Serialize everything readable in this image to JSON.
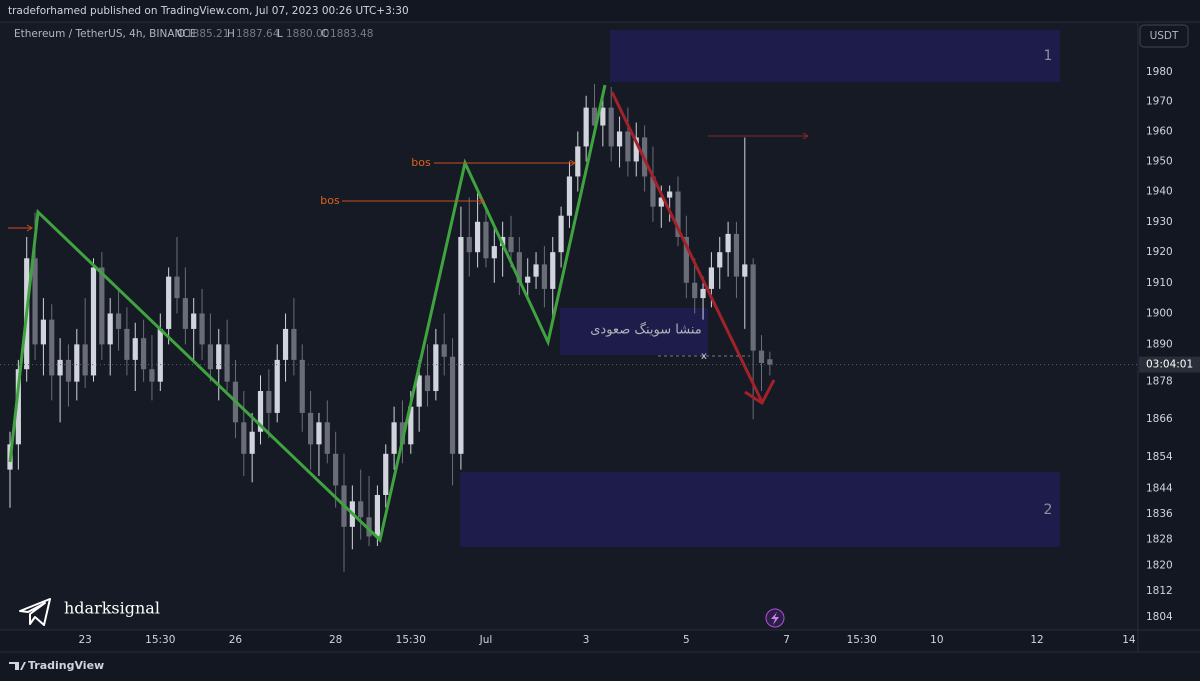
{
  "header": {
    "publisher": "tradeforhamed published on TradingView.com, Jul 07, 2023 00:26 UTC+3:30"
  },
  "chart_data": {
    "type": "candlestick",
    "symbol": "Ethereum / TetherUS, 4h, BINANCE",
    "ohlc_labels": [
      "O",
      "H",
      "L",
      "C"
    ],
    "legend_values": [
      "1885.21",
      "1887.64",
      "1880.00",
      "1883.48"
    ],
    "currency": "USDT",
    "countdown": "03:04:01",
    "log_scale": true,
    "grid": false,
    "ylim": [
      1800,
      1997
    ],
    "yticks": [
      1980,
      1970,
      1960,
      1950,
      1940,
      1930,
      1920,
      1910,
      1900,
      1890,
      1878,
      1866,
      1854,
      1844,
      1836,
      1828,
      1820,
      1812,
      1804
    ],
    "colors": {
      "up": "#d1d4dc",
      "down": "#6a6d78"
    },
    "categories": [
      null,
      null,
      null,
      null,
      null,
      null,
      null,
      null,
      null,
      "23",
      null,
      null,
      null,
      null,
      null,
      null,
      null,
      null,
      "15:30",
      null,
      null,
      null,
      null,
      null,
      null,
      null,
      null,
      "26",
      null,
      null,
      null,
      null,
      null,
      null,
      null,
      null,
      null,
      null,
      null,
      "28",
      null,
      null,
      null,
      null,
      null,
      null,
      null,
      null,
      "15:30",
      null,
      null,
      null,
      null,
      null,
      null,
      null,
      null,
      "Jul",
      null,
      null,
      null,
      null,
      null,
      null,
      null,
      null,
      null,
      null,
      null,
      "3",
      null,
      null,
      null,
      null,
      null,
      null,
      null,
      null,
      null,
      null,
      null,
      "5",
      null,
      null,
      null,
      null,
      null,
      null,
      null,
      null,
      null,
      null,
      null,
      "7",
      null,
      null,
      null,
      null,
      null,
      null,
      null,
      null,
      "15:30",
      null,
      null,
      null,
      null,
      null,
      null,
      null,
      null,
      "10",
      null,
      null,
      null,
      null,
      null,
      null,
      null,
      null,
      null,
      null,
      null,
      "12",
      null,
      null,
      null,
      null,
      null,
      null,
      null,
      null,
      null,
      null,
      "14"
    ],
    "open": [
      1850,
      1858,
      1882,
      1918,
      1890,
      1898,
      1880,
      1885,
      1878,
      1890,
      1880,
      1915,
      1890,
      1900,
      1895,
      1885,
      1892,
      1882,
      1878,
      1895,
      1912,
      1905,
      1895,
      1900,
      1890,
      1882,
      1890,
      1878,
      1865,
      1855,
      1862,
      1875,
      1868,
      1885,
      1895,
      1885,
      1868,
      1858,
      1865,
      1855,
      1845,
      1832,
      1840,
      1835,
      1829,
      1842,
      1855,
      1865,
      1858,
      1870,
      1880,
      1875,
      1890,
      1886,
      1855,
      1925,
      1920,
      1930,
      1918,
      1922,
      1925,
      1920,
      1910,
      1912,
      1916,
      1908,
      1920,
      1932,
      1945,
      1955,
      1968,
      1962,
      1968,
      1955,
      1960,
      1950,
      1958,
      1945,
      1935,
      1938,
      1940,
      1925,
      1910,
      1905,
      1908,
      1915,
      1920,
      1926,
      1912,
      1916,
      1888,
      1885.21,
      null,
      null,
      null,
      null,
      null,
      null,
      null,
      null,
      null,
      null,
      null,
      null,
      null,
      null,
      null,
      null,
      null,
      null,
      null,
      null,
      null,
      null,
      null,
      null,
      null,
      null,
      null,
      null,
      null,
      null,
      null,
      null,
      null,
      null,
      null,
      null,
      null,
      null,
      null,
      null,
      null,
      null,
      null
    ],
    "high": [
      1862,
      1885,
      1925,
      1933,
      1905,
      1903,
      1892,
      1890,
      1895,
      1905,
      1918,
      1920,
      1905,
      1908,
      1902,
      1897,
      1898,
      1893,
      1900,
      1915,
      1925,
      1915,
      1905,
      1908,
      1900,
      1895,
      1898,
      1885,
      1875,
      1868,
      1880,
      1882,
      1890,
      1900,
      1905,
      1890,
      1875,
      1868,
      1872,
      1862,
      1855,
      1845,
      1850,
      1848,
      1845,
      1858,
      1870,
      1872,
      1875,
      1885,
      1890,
      1895,
      1900,
      1892,
      1935,
      1938,
      1940,
      1935,
      1928,
      1930,
      1932,
      1925,
      1918,
      1920,
      1922,
      1925,
      1935,
      1950,
      1960,
      1972,
      1976,
      1972,
      1975,
      1965,
      1968,
      1963,
      1962,
      1955,
      1942,
      1942,
      1945,
      1932,
      1918,
      1912,
      1920,
      1925,
      1930,
      1930,
      1958,
      1918,
      1893,
      1887.64,
      null,
      null,
      null,
      null,
      null,
      null,
      null,
      null,
      null,
      null,
      null,
      null,
      null,
      null,
      null,
      null,
      null,
      null,
      null,
      null,
      null,
      null,
      null,
      null,
      null,
      null,
      null,
      null,
      null,
      null,
      null,
      null,
      null,
      null,
      null,
      null,
      null,
      null,
      null,
      null,
      null,
      null,
      null
    ],
    "low": [
      1838,
      1850,
      1878,
      1885,
      1880,
      1872,
      1865,
      1870,
      1872,
      1876,
      1878,
      1885,
      1880,
      1888,
      1880,
      1875,
      1878,
      1872,
      1875,
      1890,
      1900,
      1890,
      1885,
      1885,
      1878,
      1872,
      1875,
      1860,
      1848,
      1846,
      1858,
      1860,
      1865,
      1878,
      1880,
      1862,
      1850,
      1848,
      1852,
      1838,
      1818,
      1825,
      1828,
      1826,
      1826,
      1838,
      1850,
      1852,
      1855,
      1862,
      1870,
      1872,
      1880,
      1845,
      1850,
      1912,
      1915,
      1915,
      1910,
      1912,
      1915,
      1906,
      1905,
      1908,
      1902,
      1898,
      1915,
      1928,
      1940,
      1950,
      1958,
      1955,
      1950,
      1948,
      1945,
      1945,
      1940,
      1930,
      1928,
      1930,
      1922,
      1905,
      1900,
      1898,
      1902,
      1908,
      1912,
      1905,
      1895,
      1866,
      1875,
      1880,
      null,
      null,
      null,
      null,
      null,
      null,
      null,
      null,
      null,
      null,
      null,
      null,
      null,
      null,
      null,
      null,
      null,
      null,
      null,
      null,
      null,
      null,
      null,
      null,
      null,
      null,
      null,
      null,
      null,
      null,
      null,
      null,
      null,
      null,
      null,
      null,
      null,
      null,
      null,
      null,
      null,
      null,
      null
    ],
    "close": [
      1858,
      1882,
      1918,
      1890,
      1898,
      1880,
      1885,
      1878,
      1890,
      1880,
      1915,
      1890,
      1900,
      1895,
      1885,
      1892,
      1882,
      1878,
      1895,
      1912,
      1905,
      1895,
      1900,
      1890,
      1882,
      1890,
      1878,
      1865,
      1855,
      1862,
      1875,
      1868,
      1885,
      1895,
      1885,
      1868,
      1858,
      1865,
      1855,
      1845,
      1832,
      1840,
      1835,
      1829,
      1842,
      1855,
      1865,
      1858,
      1870,
      1880,
      1875,
      1890,
      1886,
      1855,
      1925,
      1920,
      1930,
      1918,
      1922,
      1925,
      1920,
      1910,
      1912,
      1916,
      1908,
      1920,
      1932,
      1945,
      1955,
      1968,
      1962,
      1968,
      1955,
      1960,
      1950,
      1958,
      1945,
      1935,
      1938,
      1940,
      1925,
      1910,
      1905,
      1908,
      1915,
      1920,
      1926,
      1912,
      1916,
      1888,
      1884,
      1883.48,
      null,
      null,
      null,
      null,
      null,
      null,
      null,
      null,
      null,
      null,
      null,
      null,
      null,
      null,
      null,
      null,
      null,
      null,
      null,
      null,
      null,
      null,
      null,
      null,
      null,
      null,
      null,
      null,
      null,
      null,
      null,
      null,
      null,
      null,
      null,
      null,
      null,
      null,
      null,
      null,
      null,
      null,
      null
    ],
    "annotations": [
      "bos",
      "bos",
      "1",
      "2",
      "منشا سوینگ صعودی",
      "x"
    ]
  },
  "watermark": "hdarksignal",
  "footer": "TradingView"
}
